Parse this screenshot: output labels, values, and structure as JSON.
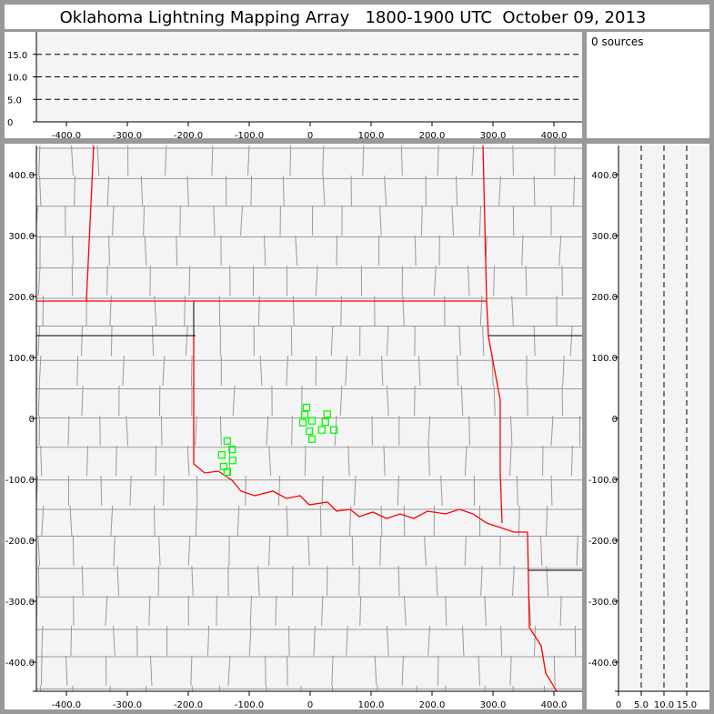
{
  "title": "Oklahoma Lightning Mapping Array   1800-1900 UTC  October 09, 2013",
  "info": {
    "source_count_label": "0 sources"
  },
  "colors": {
    "background": "#999999",
    "plot_bg": "#f4f4f4",
    "state_border": "#ff0000",
    "county_border": "#999999",
    "source_marker": "#00ff00"
  },
  "chart_data": [
    {
      "type": "line",
      "panel": "altitude-vs-east-west",
      "xlim": [
        -450,
        450
      ],
      "ylim": [
        0,
        20
      ],
      "xticks": [
        "-400.0",
        "-300.0",
        "-200.0",
        "-100.0",
        "0",
        "100.0",
        "200.0",
        "300.0",
        "400.0"
      ],
      "xtick_values": [
        -400,
        -300,
        -200,
        -100,
        0,
        100,
        200,
        300,
        400
      ],
      "yticks": [
        "0",
        "5.0",
        "10.0",
        "15.0"
      ],
      "ytick_values": [
        0,
        5,
        10,
        15
      ],
      "reference_lines": [
        5,
        10,
        15
      ],
      "points": []
    },
    {
      "type": "scatter",
      "panel": "plan-view-map",
      "xlim": [
        -450,
        450
      ],
      "ylim": [
        -450,
        450
      ],
      "xticks": [
        "-400.0",
        "-300.0",
        "-200.0",
        "-100.0",
        "0",
        "100.0",
        "200.0",
        "300.0",
        "400.0"
      ],
      "xtick_values": [
        -400,
        -300,
        -200,
        -100,
        0,
        100,
        200,
        300,
        400
      ],
      "yticks": [
        "-400.0",
        "-300.0",
        "-200.0",
        "-100.0",
        "0",
        "100.0",
        "200.0",
        "300.0",
        "400.0"
      ],
      "ytick_values": [
        -400,
        -300,
        -200,
        -100,
        0,
        100,
        200,
        300,
        400
      ],
      "marker": "hollow-square",
      "points": [
        [
          -6,
          18
        ],
        [
          -9,
          6
        ],
        [
          -12,
          -7
        ],
        [
          3,
          -4
        ],
        [
          -1,
          -21
        ],
        [
          3,
          -34
        ],
        [
          28,
          7
        ],
        [
          25,
          -6
        ],
        [
          19,
          -19
        ],
        [
          39,
          -19
        ],
        [
          -136,
          -37
        ],
        [
          -128,
          -51
        ],
        [
          -145,
          -60
        ],
        [
          -127,
          -69
        ],
        [
          -142,
          -79
        ],
        [
          -136,
          -88
        ]
      ]
    },
    {
      "type": "line",
      "panel": "north-south-vs-altitude",
      "xlim": [
        0,
        20
      ],
      "ylim": [
        -450,
        450
      ],
      "xticks": [
        "0",
        "5.0",
        "10.0",
        "15.0"
      ],
      "xtick_values": [
        0,
        5,
        10,
        15
      ],
      "yticks": [
        "-400.0",
        "-300.0",
        "-200.0",
        "-100.0",
        "0",
        "100.0",
        "200.0",
        "300.0",
        "400.0"
      ],
      "ytick_values": [
        -400,
        -300,
        -200,
        -100,
        0,
        100,
        200,
        300,
        400
      ],
      "reference_lines": [
        5,
        10,
        15
      ],
      "points": []
    }
  ]
}
